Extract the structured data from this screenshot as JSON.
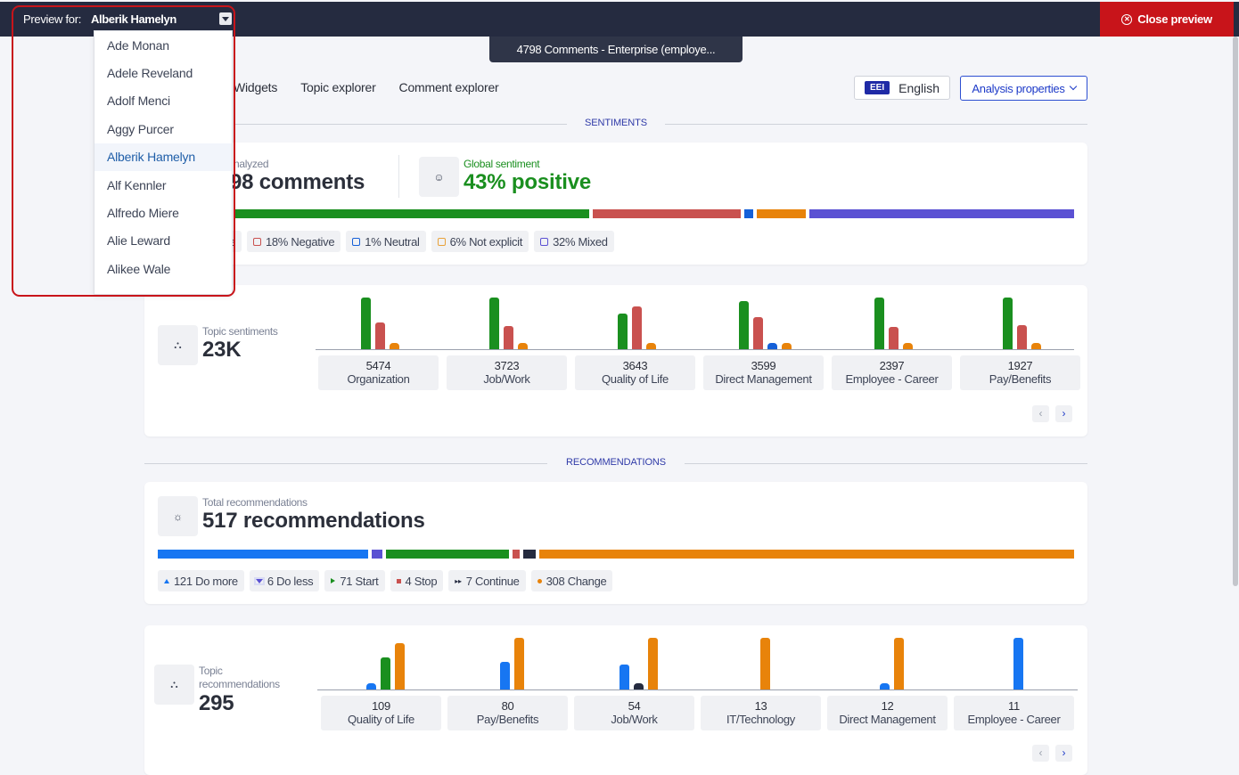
{
  "topbar": {
    "preview_label": "Preview for:",
    "preview_name": "Alberik Hamelyn",
    "close_label": "Close preview",
    "comments_tab": "4798 Comments - Enterprise (employe..."
  },
  "dropdown": {
    "items": [
      "Ade Monan",
      "Adele Reveland",
      "Adolf Menci",
      "Aggy Purcer",
      "Alberik Hamelyn",
      "Alf Kennler",
      "Alfredo Miere",
      "Alie Leward",
      "Alikee Wale"
    ],
    "selected": "Alberik Hamelyn"
  },
  "nav": {
    "tabs": [
      "Widgets",
      "Topic explorer",
      "Comment explorer"
    ],
    "lang_badge": "EEI",
    "lang_label": "English",
    "analysis_label": "Analysis properties"
  },
  "sentiments": {
    "section_title": "SENTIMENTS",
    "analyzed_label": "nalyzed",
    "analyzed_value": "98 comments",
    "global_label": "Global sentiment",
    "global_value": "43% positive",
    "bar": [
      {
        "pct": 43,
        "color": "#1a8f1f"
      },
      {
        "pct": 18,
        "color": "#c9514f"
      },
      {
        "pct": 1,
        "color": "#1560d8"
      },
      {
        "pct": 6,
        "color": "#e8830a"
      },
      {
        "pct": 32,
        "color": "#5b51d3"
      }
    ],
    "chips": [
      {
        "label": "e",
        "color": "#1a8f1f"
      },
      {
        "label": "18% Negative",
        "color": "#c9514f"
      },
      {
        "label": "1% Neutral",
        "color": "#1560d8"
      },
      {
        "label": "6% Not explicit",
        "color": "#e8a23a"
      },
      {
        "label": "32% Mixed",
        "color": "#5b51d3"
      }
    ]
  },
  "topic_sentiments": {
    "label": "Topic sentiments",
    "value": "23K",
    "categories": [
      {
        "num": "5474",
        "name": "Organization",
        "bars": [
          58,
          30,
          7,
          0
        ]
      },
      {
        "num": "3723",
        "name": "Job/Work",
        "bars": [
          58,
          26,
          7,
          0
        ]
      },
      {
        "num": "3643",
        "name": "Quality of Life",
        "bars": [
          40,
          48,
          7,
          0
        ]
      },
      {
        "num": "3599",
        "name": "Direct Management",
        "bars": [
          54,
          36,
          7,
          7
        ]
      },
      {
        "num": "2397",
        "name": "Employee - Career",
        "bars": [
          58,
          25,
          7,
          0
        ]
      },
      {
        "num": "1927",
        "name": "Pay/Benefits",
        "bars": [
          58,
          27,
          7,
          0
        ]
      }
    ],
    "colors": [
      "#1a8f1f",
      "#c9514f",
      "#e8830a",
      "#1560d8"
    ]
  },
  "recommendations": {
    "section_title": "RECOMMENDATIONS",
    "total_label": "Total recommendations",
    "total_value": "517 recommendations",
    "bar": [
      {
        "pct": 23.4,
        "color": "#1776f2"
      },
      {
        "pct": 1.2,
        "color": "#5b51d3"
      },
      {
        "pct": 13.7,
        "color": "#1a8f1f"
      },
      {
        "pct": 0.8,
        "color": "#c9514f"
      },
      {
        "pct": 1.4,
        "color": "#252b40"
      },
      {
        "pct": 59.5,
        "color": "#e8830a"
      }
    ],
    "chips": [
      {
        "label": "121 Do more",
        "color": "#1776f2",
        "kind": "up"
      },
      {
        "label": "6 Do less",
        "color": "#5b51d3",
        "kind": "downbox"
      },
      {
        "label": "71 Start",
        "color": "#1a8f1f",
        "kind": "right"
      },
      {
        "label": "4 Stop",
        "color": "#c9514f",
        "kind": "square"
      },
      {
        "label": "7 Continue",
        "color": "#252b40",
        "kind": "double"
      },
      {
        "label": "308 Change",
        "color": "#e8830a",
        "kind": "dot"
      }
    ]
  },
  "topic_recommendations": {
    "label1": "Topic",
    "label2": "recommendations",
    "value": "295",
    "categories": [
      {
        "num": "109",
        "name": "Quality of Life",
        "bars": [
          {
            "v": 7,
            "c": "#1776f2"
          },
          {
            "v": 36,
            "c": "#1a8f1f"
          },
          {
            "v": 52,
            "c": "#e8830a"
          }
        ]
      },
      {
        "num": "80",
        "name": "Pay/Benefits",
        "bars": [
          {
            "v": 31,
            "c": "#1776f2"
          },
          {
            "v": 58,
            "c": "#e8830a"
          }
        ]
      },
      {
        "num": "54",
        "name": "Job/Work",
        "bars": [
          {
            "v": 28,
            "c": "#1776f2"
          },
          {
            "v": 7,
            "c": "#252b40"
          },
          {
            "v": 58,
            "c": "#e8830a"
          }
        ]
      },
      {
        "num": "13",
        "name": "IT/Technology",
        "bars": [
          {
            "v": 58,
            "c": "#e8830a"
          }
        ]
      },
      {
        "num": "12",
        "name": "Direct Management",
        "bars": [
          {
            "v": 7,
            "c": "#1776f2"
          },
          {
            "v": 58,
            "c": "#e8830a"
          }
        ]
      },
      {
        "num": "11",
        "name": "Employee - Career",
        "bars": [
          {
            "v": 58,
            "c": "#1776f2"
          }
        ]
      }
    ]
  }
}
